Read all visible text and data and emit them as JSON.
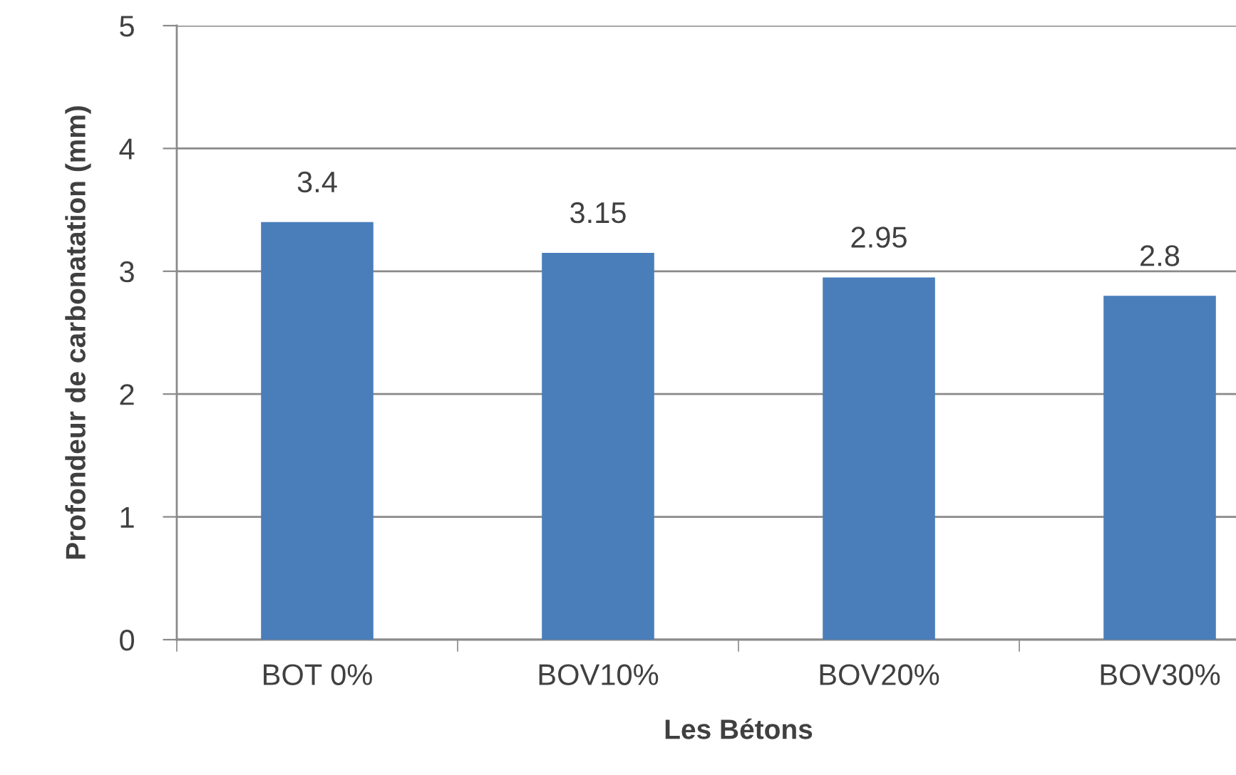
{
  "chart_data": {
    "type": "bar",
    "xlabel": "Les Bétons",
    "ylabel": "Profondeur de carbonatation (mm)",
    "categories": [
      "BOT 0%",
      "BOV10%",
      "BOV20%",
      "BOV30%"
    ],
    "values": [
      3.4,
      3.15,
      2.95,
      2.8
    ],
    "color": "#4a7ebb",
    "ylim": [
      0,
      5
    ],
    "yticks": [
      0,
      1,
      2,
      3,
      4,
      5
    ],
    "grid": "y",
    "data_labels": true
  }
}
